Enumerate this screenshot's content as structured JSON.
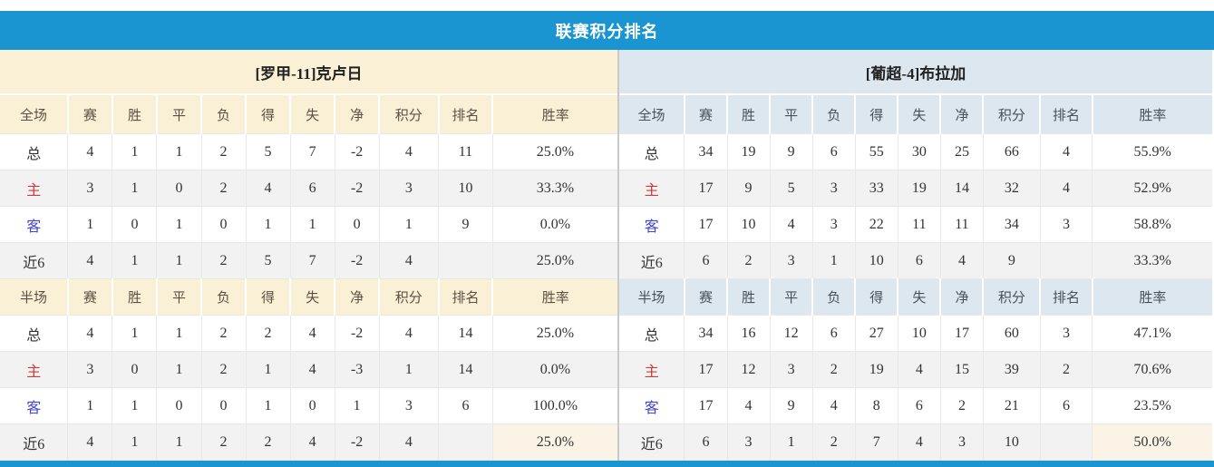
{
  "title": "联赛积分排名",
  "colors": {
    "accent_blue": "#1b95d2",
    "left_header_bg": "#faf0d5",
    "right_header_bg": "#dde7ef",
    "row_stripe": "#f2f2f2",
    "points_red": "#e8432d",
    "rank_blue": "#2f80c9",
    "home_label_red": "#cf3a3a",
    "away_label_blue": "#4545cf"
  },
  "left": {
    "team": "[罗甲-11]克卢日",
    "full": {
      "header": [
        "全场",
        "赛",
        "胜",
        "平",
        "负",
        "得",
        "失",
        "净",
        "积分",
        "排名",
        "胜率"
      ],
      "rows": [
        {
          "label": "总",
          "type": "total",
          "vals": [
            "4",
            "1",
            "1",
            "2",
            "5",
            "7",
            "-2"
          ],
          "points": "4",
          "rank": "11",
          "rate": "25.0%"
        },
        {
          "label": "主",
          "type": "home",
          "vals": [
            "3",
            "1",
            "0",
            "2",
            "4",
            "6",
            "-2"
          ],
          "points": "3",
          "rank": "10",
          "rate": "33.3%"
        },
        {
          "label": "客",
          "type": "away",
          "vals": [
            "1",
            "0",
            "1",
            "0",
            "1",
            "1",
            "0"
          ],
          "points": "1",
          "rank": "9",
          "rate": "0.0%"
        },
        {
          "label": "近6",
          "type": "recent",
          "vals": [
            "4",
            "1",
            "1",
            "2",
            "5",
            "7",
            "-2"
          ],
          "points": "4",
          "rank": "",
          "rate": "25.0%"
        }
      ]
    },
    "half": {
      "header": [
        "半场",
        "赛",
        "胜",
        "平",
        "负",
        "得",
        "失",
        "净",
        "积分",
        "排名",
        "胜率"
      ],
      "rows": [
        {
          "label": "总",
          "type": "total",
          "vals": [
            "4",
            "1",
            "1",
            "2",
            "2",
            "4",
            "-2"
          ],
          "points": "4",
          "rank": "14",
          "rate": "25.0%"
        },
        {
          "label": "主",
          "type": "home",
          "vals": [
            "3",
            "0",
            "1",
            "2",
            "1",
            "4",
            "-3"
          ],
          "points": "1",
          "rank": "14",
          "rate": "0.0%"
        },
        {
          "label": "客",
          "type": "away",
          "vals": [
            "1",
            "1",
            "0",
            "0",
            "1",
            "0",
            "1"
          ],
          "points": "3",
          "rank": "6",
          "rate": "100.0%"
        },
        {
          "label": "近6",
          "type": "recent",
          "vals": [
            "4",
            "1",
            "1",
            "2",
            "2",
            "4",
            "-2"
          ],
          "points": "4",
          "rank": "",
          "rate": "25.0%"
        }
      ]
    }
  },
  "right": {
    "team": "[葡超-4]布拉加",
    "full": {
      "header": [
        "全场",
        "赛",
        "胜",
        "平",
        "负",
        "得",
        "失",
        "净",
        "积分",
        "排名",
        "胜率"
      ],
      "rows": [
        {
          "label": "总",
          "type": "total",
          "vals": [
            "34",
            "19",
            "9",
            "6",
            "55",
            "30",
            "25"
          ],
          "points": "66",
          "rank": "4",
          "rate": "55.9%"
        },
        {
          "label": "主",
          "type": "home",
          "vals": [
            "17",
            "9",
            "5",
            "3",
            "33",
            "19",
            "14"
          ],
          "points": "32",
          "rank": "4",
          "rate": "52.9%"
        },
        {
          "label": "客",
          "type": "away",
          "vals": [
            "17",
            "10",
            "4",
            "3",
            "22",
            "11",
            "11"
          ],
          "points": "34",
          "rank": "3",
          "rate": "58.8%"
        },
        {
          "label": "近6",
          "type": "recent",
          "vals": [
            "6",
            "2",
            "3",
            "1",
            "10",
            "6",
            "4"
          ],
          "points": "9",
          "rank": "",
          "rate": "33.3%"
        }
      ]
    },
    "half": {
      "header": [
        "半场",
        "赛",
        "胜",
        "平",
        "负",
        "得",
        "失",
        "净",
        "积分",
        "排名",
        "胜率"
      ],
      "rows": [
        {
          "label": "总",
          "type": "total",
          "vals": [
            "34",
            "16",
            "12",
            "6",
            "27",
            "10",
            "17"
          ],
          "points": "60",
          "rank": "3",
          "rate": "47.1%"
        },
        {
          "label": "主",
          "type": "home",
          "vals": [
            "17",
            "12",
            "3",
            "2",
            "19",
            "4",
            "15"
          ],
          "points": "39",
          "rank": "2",
          "rate": "70.6%"
        },
        {
          "label": "客",
          "type": "away",
          "vals": [
            "17",
            "4",
            "9",
            "4",
            "8",
            "6",
            "2"
          ],
          "points": "21",
          "rank": "6",
          "rate": "23.5%"
        },
        {
          "label": "近6",
          "type": "recent",
          "vals": [
            "6",
            "3",
            "1",
            "2",
            "7",
            "4",
            "3"
          ],
          "points": "10",
          "rank": "",
          "rate": "50.0%"
        }
      ]
    }
  }
}
